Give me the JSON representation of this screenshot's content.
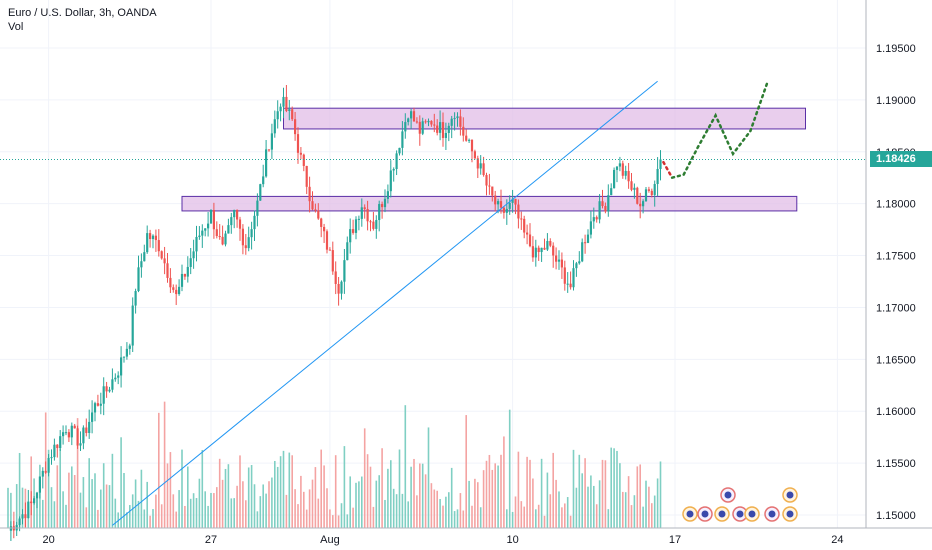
{
  "header": {
    "symbol_line": "Euro / U.S. Dollar, 3h, OANDA",
    "indicator": "Vol"
  },
  "colors": {
    "up": "#26a69a",
    "down": "#ef5350",
    "vol_up": "#7fcfc3",
    "vol_down": "#f4a3a2",
    "zone_fill": "#e1bee7",
    "zone_stroke": "#5a2fa6",
    "trendline": "#2196f3",
    "proj_green": "#2e7d32",
    "proj_red": "#d32f2f",
    "grid": "#f0f3fa",
    "last_price_line": "#26a69a"
  },
  "chart_data": {
    "type": "candlestick",
    "y_axis": {
      "min": 1.148,
      "max": 1.2,
      "ticks": [
        "1.19500",
        "1.19000",
        "1.18500",
        "1.18000",
        "1.17500",
        "1.17000",
        "1.16500",
        "1.16000",
        "1.15500",
        "1.15000"
      ]
    },
    "x_axis": {
      "ticks": [
        {
          "label": "20",
          "index": 14
        },
        {
          "label": "27",
          "index": 70
        },
        {
          "label": "Aug",
          "index": 111
        },
        {
          "label": "10",
          "index": 174
        },
        {
          "label": "17",
          "index": 230
        },
        {
          "label": "24",
          "index": 286
        }
      ],
      "total_slots": 300
    },
    "last_price": {
      "value": 1.18426,
      "label": "1.18426"
    },
    "price_path": [
      [
        0,
        1.1485
      ],
      [
        8,
        1.151
      ],
      [
        14,
        1.1555
      ],
      [
        20,
        1.1585
      ],
      [
        25,
        1.157
      ],
      [
        30,
        1.1605
      ],
      [
        34,
        1.162
      ],
      [
        38,
        1.164
      ],
      [
        42,
        1.167
      ],
      [
        44,
        1.172
      ],
      [
        48,
        1.177
      ],
      [
        52,
        1.176
      ],
      [
        55,
        1.1735
      ],
      [
        58,
        1.171
      ],
      [
        62,
        1.174
      ],
      [
        66,
        1.177
      ],
      [
        70,
        1.179
      ],
      [
        74,
        1.1755
      ],
      [
        78,
        1.179
      ],
      [
        82,
        1.176
      ],
      [
        86,
        1.18
      ],
      [
        90,
        1.186
      ],
      [
        94,
        1.19
      ],
      [
        98,
        1.188
      ],
      [
        102,
        1.183
      ],
      [
        106,
        1.179
      ],
      [
        110,
        1.176
      ],
      [
        114,
        1.172
      ],
      [
        118,
        1.177
      ],
      [
        122,
        1.18
      ],
      [
        126,
        1.178
      ],
      [
        130,
        1.181
      ],
      [
        134,
        1.185
      ],
      [
        138,
        1.189
      ],
      [
        142,
        1.187
      ],
      [
        146,
        1.188
      ],
      [
        150,
        1.187
      ],
      [
        154,
        1.189
      ],
      [
        158,
        1.186
      ],
      [
        162,
        1.184
      ],
      [
        166,
        1.181
      ],
      [
        170,
        1.179
      ],
      [
        174,
        1.18
      ],
      [
        178,
        1.177
      ],
      [
        182,
        1.175
      ],
      [
        186,
        1.176
      ],
      [
        190,
        1.174
      ],
      [
        194,
        1.172
      ],
      [
        198,
        1.176
      ],
      [
        202,
        1.179
      ],
      [
        206,
        1.18
      ],
      [
        210,
        1.184
      ],
      [
        214,
        1.182
      ],
      [
        218,
        1.18
      ],
      [
        222,
        1.1815
      ],
      [
        225,
        1.1843
      ]
    ],
    "zones": [
      {
        "y_top": 1.1892,
        "y_bottom": 1.1872,
        "x_start": 95,
        "x_end": 275
      },
      {
        "y_top": 1.1807,
        "y_bottom": 1.1793,
        "x_start": 60,
        "x_end": 272
      }
    ],
    "trendline": {
      "x1": 36,
      "y1": 1.149,
      "x2": 224,
      "y2": 1.1918
    },
    "projection_red": [
      [
        226,
        1.184
      ],
      [
        229,
        1.1825
      ]
    ],
    "projection_green": [
      [
        229,
        1.1825
      ],
      [
        233,
        1.1828
      ],
      [
        238,
        1.1855
      ],
      [
        244,
        1.1885
      ],
      [
        250,
        1.1848
      ],
      [
        256,
        1.187
      ],
      [
        262,
        1.1918
      ]
    ]
  }
}
